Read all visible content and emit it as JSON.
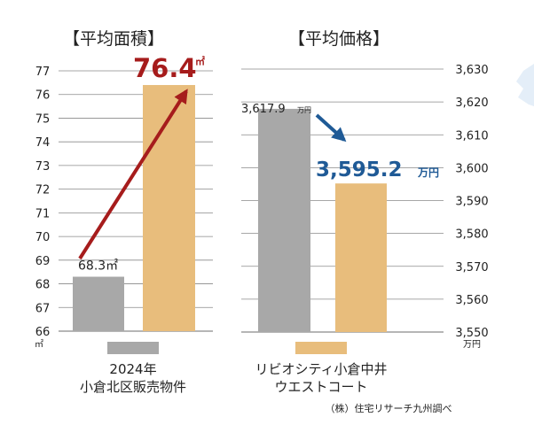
{
  "chart_data": [
    {
      "type": "bar",
      "title": "【平均面積】",
      "categories": [
        "2024年 小倉北区販売物件",
        "リビオシティ小倉中井 ウエストコート"
      ],
      "values": [
        68.3,
        76.4
      ],
      "labels": [
        "68.3㎡",
        "76.4"
      ],
      "highlight_unit": "㎡",
      "yunit": "㎡",
      "ylim": [
        66,
        77
      ],
      "yticks": [
        "66",
        "67",
        "68",
        "69",
        "70",
        "71",
        "72",
        "73",
        "74",
        "75",
        "76",
        "77"
      ],
      "grid": true,
      "colors": [
        "#a8a8a8",
        "#e8bd7c"
      ],
      "arrow_color": "#a61c1c"
    },
    {
      "type": "bar",
      "title": "【平均価格】",
      "categories": [
        "2024年 小倉北区販売物件",
        "リビオシティ小倉中井 ウエストコート"
      ],
      "values": [
        3617.9,
        3595.2
      ],
      "labels": [
        "3,617.9",
        "3,595.2"
      ],
      "label_unit": "万円",
      "yunit": "万円",
      "ylim": [
        3550,
        3630
      ],
      "yticks": [
        "3,550",
        "3,560",
        "3,570",
        "3,580",
        "3,590",
        "3,600",
        "3,610",
        "3,620",
        "3,630"
      ],
      "grid": true,
      "colors": [
        "#a8a8a8",
        "#e8bd7c"
      ],
      "arrow_color": "#1f5a96"
    }
  ],
  "legend": [
    {
      "line1": "2024年",
      "line2": "小倉北区販売物件",
      "color": "#a8a8a8"
    },
    {
      "line1": "リビオシティ小倉中井",
      "line2": "ウエストコート",
      "color": "#e8bd7c"
    }
  ],
  "source": "（株）住宅リサーチ九州調べ"
}
